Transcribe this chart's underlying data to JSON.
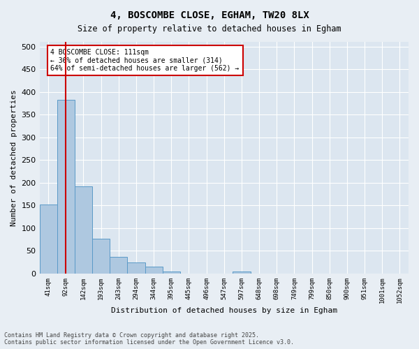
{
  "title": "4, BOSCOMBE CLOSE, EGHAM, TW20 8LX",
  "subtitle": "Size of property relative to detached houses in Egham",
  "xlabel": "Distribution of detached houses by size in Egham",
  "ylabel": "Number of detached properties",
  "bin_labels": [
    "41sqm",
    "92sqm",
    "142sqm",
    "193sqm",
    "243sqm",
    "294sqm",
    "344sqm",
    "395sqm",
    "445sqm",
    "496sqm",
    "547sqm",
    "597sqm",
    "648sqm",
    "698sqm",
    "749sqm",
    "799sqm",
    "850sqm",
    "900sqm",
    "951sqm",
    "1001sqm",
    "1052sqm"
  ],
  "bar_values": [
    152,
    383,
    192,
    77,
    37,
    25,
    15,
    5,
    0,
    0,
    0,
    4,
    0,
    0,
    0,
    0,
    0,
    0,
    0,
    0,
    0
  ],
  "bar_color": "#aec8e0",
  "bar_edge_color": "#5a9ac8",
  "vline_x": 1.0,
  "vline_color": "#cc0000",
  "annotation_line1": "4 BOSCOMBE CLOSE: 111sqm",
  "annotation_line2": "← 36% of detached houses are smaller (314)",
  "annotation_line3": "64% of semi-detached houses are larger (562) →",
  "annotation_box_color": "#cc0000",
  "ylim": [
    0,
    510
  ],
  "yticks": [
    0,
    50,
    100,
    150,
    200,
    250,
    300,
    350,
    400,
    450,
    500
  ],
  "background_color": "#e8eef4",
  "plot_background": "#dce6f0",
  "footer_line1": "Contains HM Land Registry data © Crown copyright and database right 2025.",
  "footer_line2": "Contains public sector information licensed under the Open Government Licence v3.0."
}
